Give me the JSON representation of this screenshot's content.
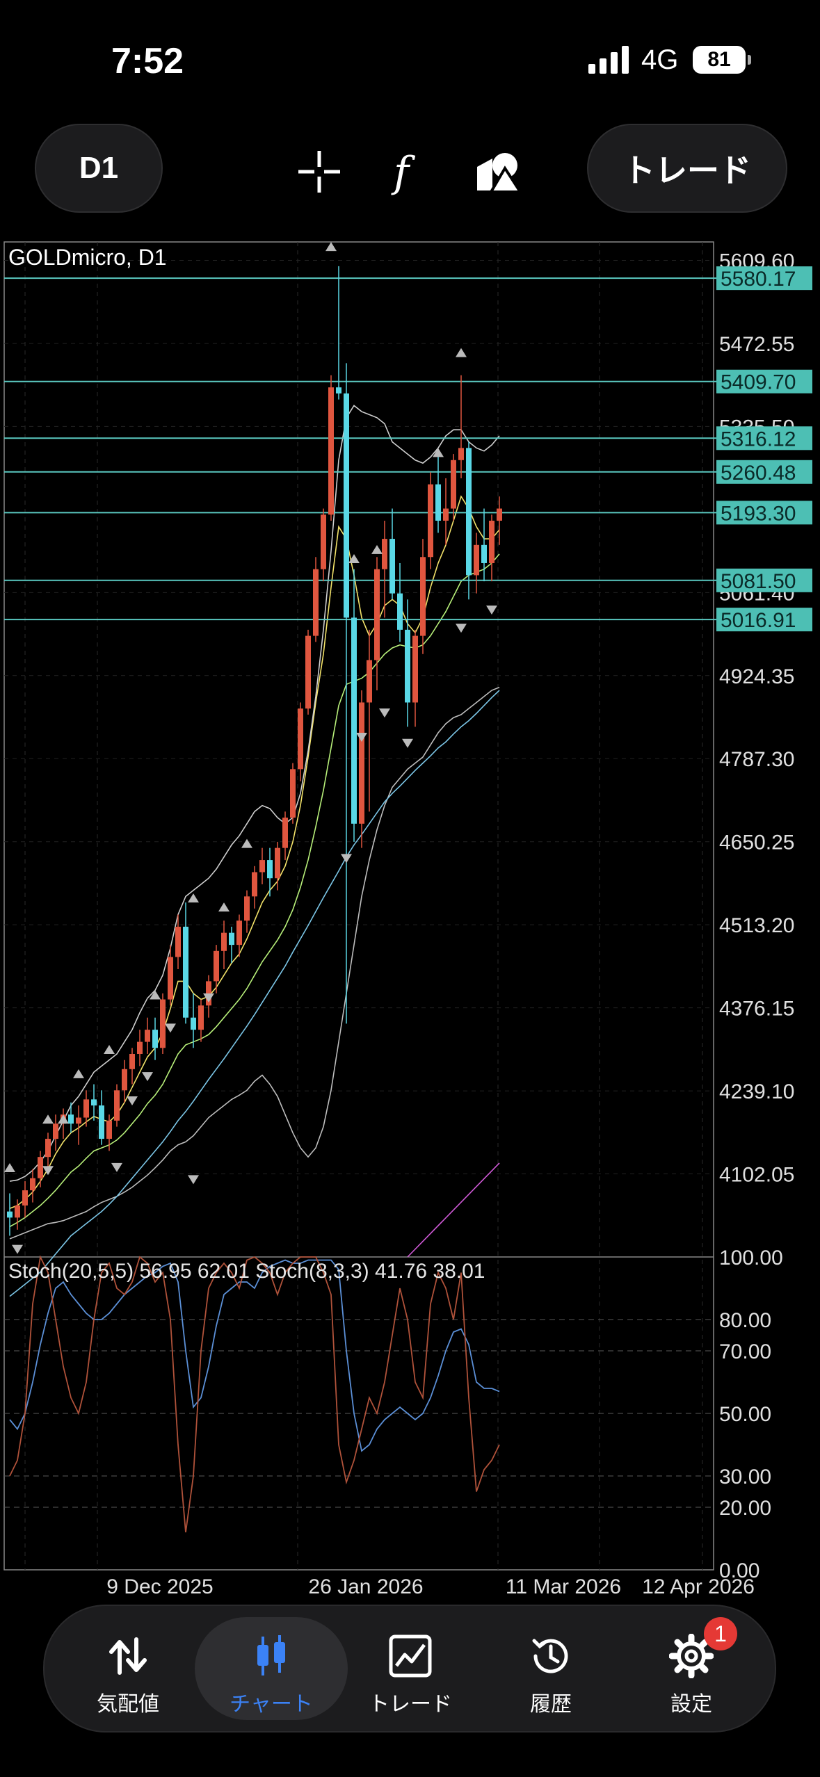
{
  "status_bar": {
    "time": "7:52",
    "network": "4G",
    "battery": "81"
  },
  "toolbar": {
    "timeframe": "D1",
    "trade_label": "トレード"
  },
  "chart": {
    "symbol_label": "GOLDmicro, D1",
    "stoch_label": "Stoch(20,5,5) 56.95 62.01 Stoch(8,3,3) 41.76 38.01",
    "colors": {
      "bull": "#e0563f",
      "bear": "#5ad8e6",
      "hline": "#5ac8c0",
      "price_tag_bg": "#4dbfb4"
    }
  },
  "chart_data": [
    {
      "type": "line",
      "title": "GOLDmicro, D1",
      "ylim": [
        3965,
        5640
      ],
      "y_ticks": [
        "5609.60",
        "5472.55",
        "5335.50",
        "5061.40",
        "4924.35",
        "4787.30",
        "4650.25",
        "4513.20",
        "4376.15",
        "4239.10",
        "4102.05"
      ],
      "price_tags": [
        "5580.17",
        "5409.70",
        "5316.12",
        "5260.48",
        "5193.30",
        "5081.50",
        "5016.91"
      ],
      "x_tick_labels": [
        "9 Dec 2025",
        "26 Jan 2026",
        "11 Mar 2026",
        "12 Apr 2026"
      ],
      "series": [
        {
          "name": "candles",
          "ohlc": [
            [
              4040,
              4070,
              4000,
              4030
            ],
            [
              4030,
              4060,
              4010,
              4050
            ],
            [
              4050,
              4090,
              4030,
              4075
            ],
            [
              4075,
              4110,
              4055,
              4095
            ],
            [
              4095,
              4140,
              4080,
              4130
            ],
            [
              4130,
              4170,
              4110,
              4160
            ],
            [
              4160,
              4200,
              4140,
              4185
            ],
            [
              4185,
              4210,
              4160,
              4200
            ],
            [
              4200,
              4220,
              4170,
              4185
            ],
            [
              4185,
              4215,
              4150,
              4195
            ],
            [
              4195,
              4240,
              4180,
              4225
            ],
            [
              4225,
              4250,
              4190,
              4215
            ],
            [
              4215,
              4240,
              4150,
              4160
            ],
            [
              4160,
              4200,
              4140,
              4190
            ],
            [
              4190,
              4250,
              4180,
              4240
            ],
            [
              4240,
              4290,
              4220,
              4275
            ],
            [
              4275,
              4310,
              4250,
              4300
            ],
            [
              4300,
              4340,
              4280,
              4320
            ],
            [
              4320,
              4360,
              4300,
              4340
            ],
            [
              4340,
              4360,
              4290,
              4310
            ],
            [
              4310,
              4400,
              4300,
              4390
            ],
            [
              4390,
              4480,
              4380,
              4460
            ],
            [
              4460,
              4530,
              4440,
              4510
            ],
            [
              4510,
              4550,
              4350,
              4360
            ],
            [
              4360,
              4400,
              4310,
              4340
            ],
            [
              4340,
              4390,
              4320,
              4380
            ],
            [
              4380,
              4430,
              4360,
              4420
            ],
            [
              4420,
              4480,
              4400,
              4470
            ],
            [
              4470,
              4520,
              4440,
              4500
            ],
            [
              4500,
              4510,
              4450,
              4480
            ],
            [
              4480,
              4530,
              4460,
              4520
            ],
            [
              4520,
              4570,
              4500,
              4560
            ],
            [
              4560,
              4610,
              4540,
              4600
            ],
            [
              4600,
              4640,
              4580,
              4620
            ],
            [
              4620,
              4640,
              4560,
              4590
            ],
            [
              4590,
              4650,
              4570,
              4640
            ],
            [
              4640,
              4700,
              4620,
              4690
            ],
            [
              4690,
              4780,
              4680,
              4770
            ],
            [
              4770,
              4880,
              4750,
              4870
            ],
            [
              4870,
              5000,
              4860,
              4990
            ],
            [
              4990,
              5120,
              4980,
              5100
            ],
            [
              5100,
              5200,
              5080,
              5190
            ],
            [
              5190,
              5420,
              5180,
              5400
            ],
            [
              5400,
              5600,
              5380,
              5390
            ],
            [
              5390,
              5440,
              4350,
              5020
            ],
            [
              5020,
              5100,
              4650,
              4680
            ],
            [
              4680,
              4900,
              4640,
              4880
            ],
            [
              4880,
              5000,
              4700,
              4950
            ],
            [
              4950,
              5120,
              4900,
              5100
            ],
            [
              5100,
              5180,
              5020,
              5150
            ],
            [
              5150,
              5200,
              5050,
              5060
            ],
            [
              5060,
              5110,
              4980,
              5000
            ],
            [
              5000,
              5050,
              4840,
              4880
            ],
            [
              4880,
              5000,
              4840,
              4990
            ],
            [
              4990,
              5150,
              4960,
              5120
            ],
            [
              5120,
              5260,
              5100,
              5240
            ],
            [
              5240,
              5290,
              5160,
              5180
            ],
            [
              5180,
              5250,
              5140,
              5200
            ],
            [
              5200,
              5290,
              5180,
              5280
            ],
            [
              5280,
              5420,
              5250,
              5300
            ],
            [
              5300,
              5310,
              5050,
              5090
            ],
            [
              5090,
              5160,
              5060,
              5140
            ],
            [
              5140,
              5200,
              5080,
              5110
            ],
            [
              5110,
              5190,
              5080,
              5180
            ],
            [
              5180,
              5220,
              5140,
              5200
            ]
          ]
        },
        {
          "name": "",
          "values": [
            4045,
            4050,
            4060,
            4072,
            4090,
            4110,
            4135,
            4155,
            4170,
            4178,
            4188,
            4197,
            4192,
            4188,
            4200,
            4220,
            4245,
            4270,
            4295,
            4310,
            4335,
            4375,
            4420,
            4420,
            4400,
            4390,
            4395,
            4410,
            4430,
            4450,
            4465,
            4490,
            4520,
            4550,
            4570,
            4585,
            4610,
            4650,
            4710,
            4790,
            4880,
            4960,
            5070,
            5170,
            5150,
            5090,
            5020,
            4990,
            5010,
            5040,
            5050,
            5040,
            5010,
            4995,
            5020,
            5070,
            5110,
            5140,
            5180,
            5220,
            5200,
            5170,
            5150,
            5150,
            5165
          ]
        },
        {
          "name": "",
          "values": [
            4015,
            4022,
            4030,
            4040,
            4050,
            4062,
            4075,
            4090,
            4105,
            4115,
            4128,
            4140,
            4145,
            4150,
            4158,
            4170,
            4185,
            4200,
            4218,
            4232,
            4250,
            4275,
            4300,
            4315,
            4320,
            4325,
            4332,
            4345,
            4360,
            4375,
            4390,
            4408,
            4430,
            4452,
            4470,
            4488,
            4510,
            4538,
            4575,
            4620,
            4675,
            4735,
            4805,
            4875,
            4910,
            4915,
            4920,
            4930,
            4945,
            4960,
            4970,
            4975,
            4972,
            4970,
            4975,
            4990,
            5010,
            5030,
            5055,
            5080,
            5090,
            5095,
            5100,
            5110,
            5125
          ]
        },
        {
          "name": "",
          "values": [
            4090,
            4092,
            4098,
            4108,
            4122,
            4140,
            4165,
            4190,
            4215,
            4230,
            4250,
            4270,
            4280,
            4290,
            4300,
            4320,
            4340,
            4368,
            4392,
            4405,
            4430,
            4475,
            4530,
            4560,
            4570,
            4580,
            4590,
            4605,
            4625,
            4645,
            4660,
            4680,
            4700,
            4710,
            4705,
            4690,
            4680,
            4690,
            4730,
            4800,
            4890,
            5000,
            5130,
            5280,
            5350,
            5370,
            5360,
            5355,
            5350,
            5340,
            5310,
            5300,
            5290,
            5280,
            5275,
            5285,
            5300,
            5320,
            5330,
            5330,
            5310,
            5300,
            5295,
            5305,
            5320
          ]
        },
        {
          "name": "",
          "values": [
            3995,
            4000,
            4005,
            4010,
            4015,
            4020,
            4022,
            4025,
            4030,
            4035,
            4040,
            4048,
            4055,
            4060,
            4065,
            4072,
            4080,
            4090,
            4100,
            4112,
            4125,
            4140,
            4150,
            4155,
            4165,
            4180,
            4195,
            4205,
            4215,
            4225,
            4232,
            4240,
            4255,
            4265,
            4250,
            4230,
            4200,
            4170,
            4145,
            4130,
            4145,
            4180,
            4240,
            4320,
            4400,
            4480,
            4560,
            4620,
            4670,
            4710,
            4740,
            4755,
            4770,
            4780,
            4790,
            4810,
            4830,
            4845,
            4855,
            4860,
            4870,
            4880,
            4890,
            4900,
            4905
          ]
        },
        {
          "name": "",
          "values": [
            3900,
            3910,
            3920,
            3930,
            3940,
            3955,
            3970,
            3985,
            4000,
            4010,
            4020,
            4030,
            4040,
            4052,
            4065,
            4080,
            4095,
            4110,
            4125,
            4140,
            4155,
            4172,
            4190,
            4205,
            4222,
            4240,
            4258,
            4275,
            4292,
            4310,
            4328,
            4346,
            4365,
            4385,
            4405,
            4425,
            4445,
            4468,
            4490,
            4512,
            4535,
            4558,
            4580,
            4602,
            4625,
            4645,
            4662,
            4680,
            4698,
            4716,
            4730,
            4742,
            4755,
            4768,
            4780,
            4792,
            4805,
            4815,
            4828,
            4840,
            4850,
            4862,
            4875,
            4888,
            4900
          ]
        }
      ]
    },
    {
      "type": "line",
      "title": "Stoch(20,5,5) 56.95 62.01 Stoch(8,3,3) 41.76 38.01",
      "ylim": [
        0,
        100
      ],
      "y_ticks": [
        "100.00",
        "80.00",
        "70.00",
        "50.00",
        "30.00",
        "20.00",
        "0.00"
      ],
      "series": [
        {
          "name": "",
          "values": [
            48,
            45,
            50,
            60,
            72,
            82,
            90,
            92,
            88,
            85,
            82,
            80,
            80,
            82,
            85,
            88,
            90,
            92,
            94,
            95,
            97,
            98,
            92,
            70,
            52,
            55,
            65,
            78,
            88,
            90,
            92,
            92,
            90,
            95,
            97,
            98,
            99,
            98,
            98,
            99,
            99,
            99,
            99,
            96,
            70,
            50,
            38,
            40,
            45,
            48,
            50,
            52,
            50,
            48,
            50,
            55,
            62,
            70,
            76,
            77,
            72,
            60,
            58,
            58,
            57
          ]
        },
        {
          "name": "",
          "values": [
            30,
            35,
            50,
            85,
            100,
            95,
            80,
            65,
            55,
            50,
            60,
            80,
            95,
            98,
            90,
            88,
            92,
            100,
            98,
            92,
            95,
            80,
            40,
            12,
            30,
            70,
            90,
            95,
            98,
            95,
            90,
            99,
            100,
            98,
            95,
            88,
            95,
            98,
            100,
            100,
            100,
            95,
            88,
            40,
            28,
            35,
            45,
            55,
            50,
            60,
            75,
            90,
            80,
            60,
            55,
            85,
            95,
            90,
            80,
            95,
            55,
            25,
            32,
            35,
            40
          ]
        }
      ]
    }
  ],
  "tabbar": {
    "items": [
      {
        "label": "気配値"
      },
      {
        "label": "チャート"
      },
      {
        "label": "トレード"
      },
      {
        "label": "履歴"
      },
      {
        "label": "設定"
      }
    ],
    "settings_badge": "1"
  }
}
